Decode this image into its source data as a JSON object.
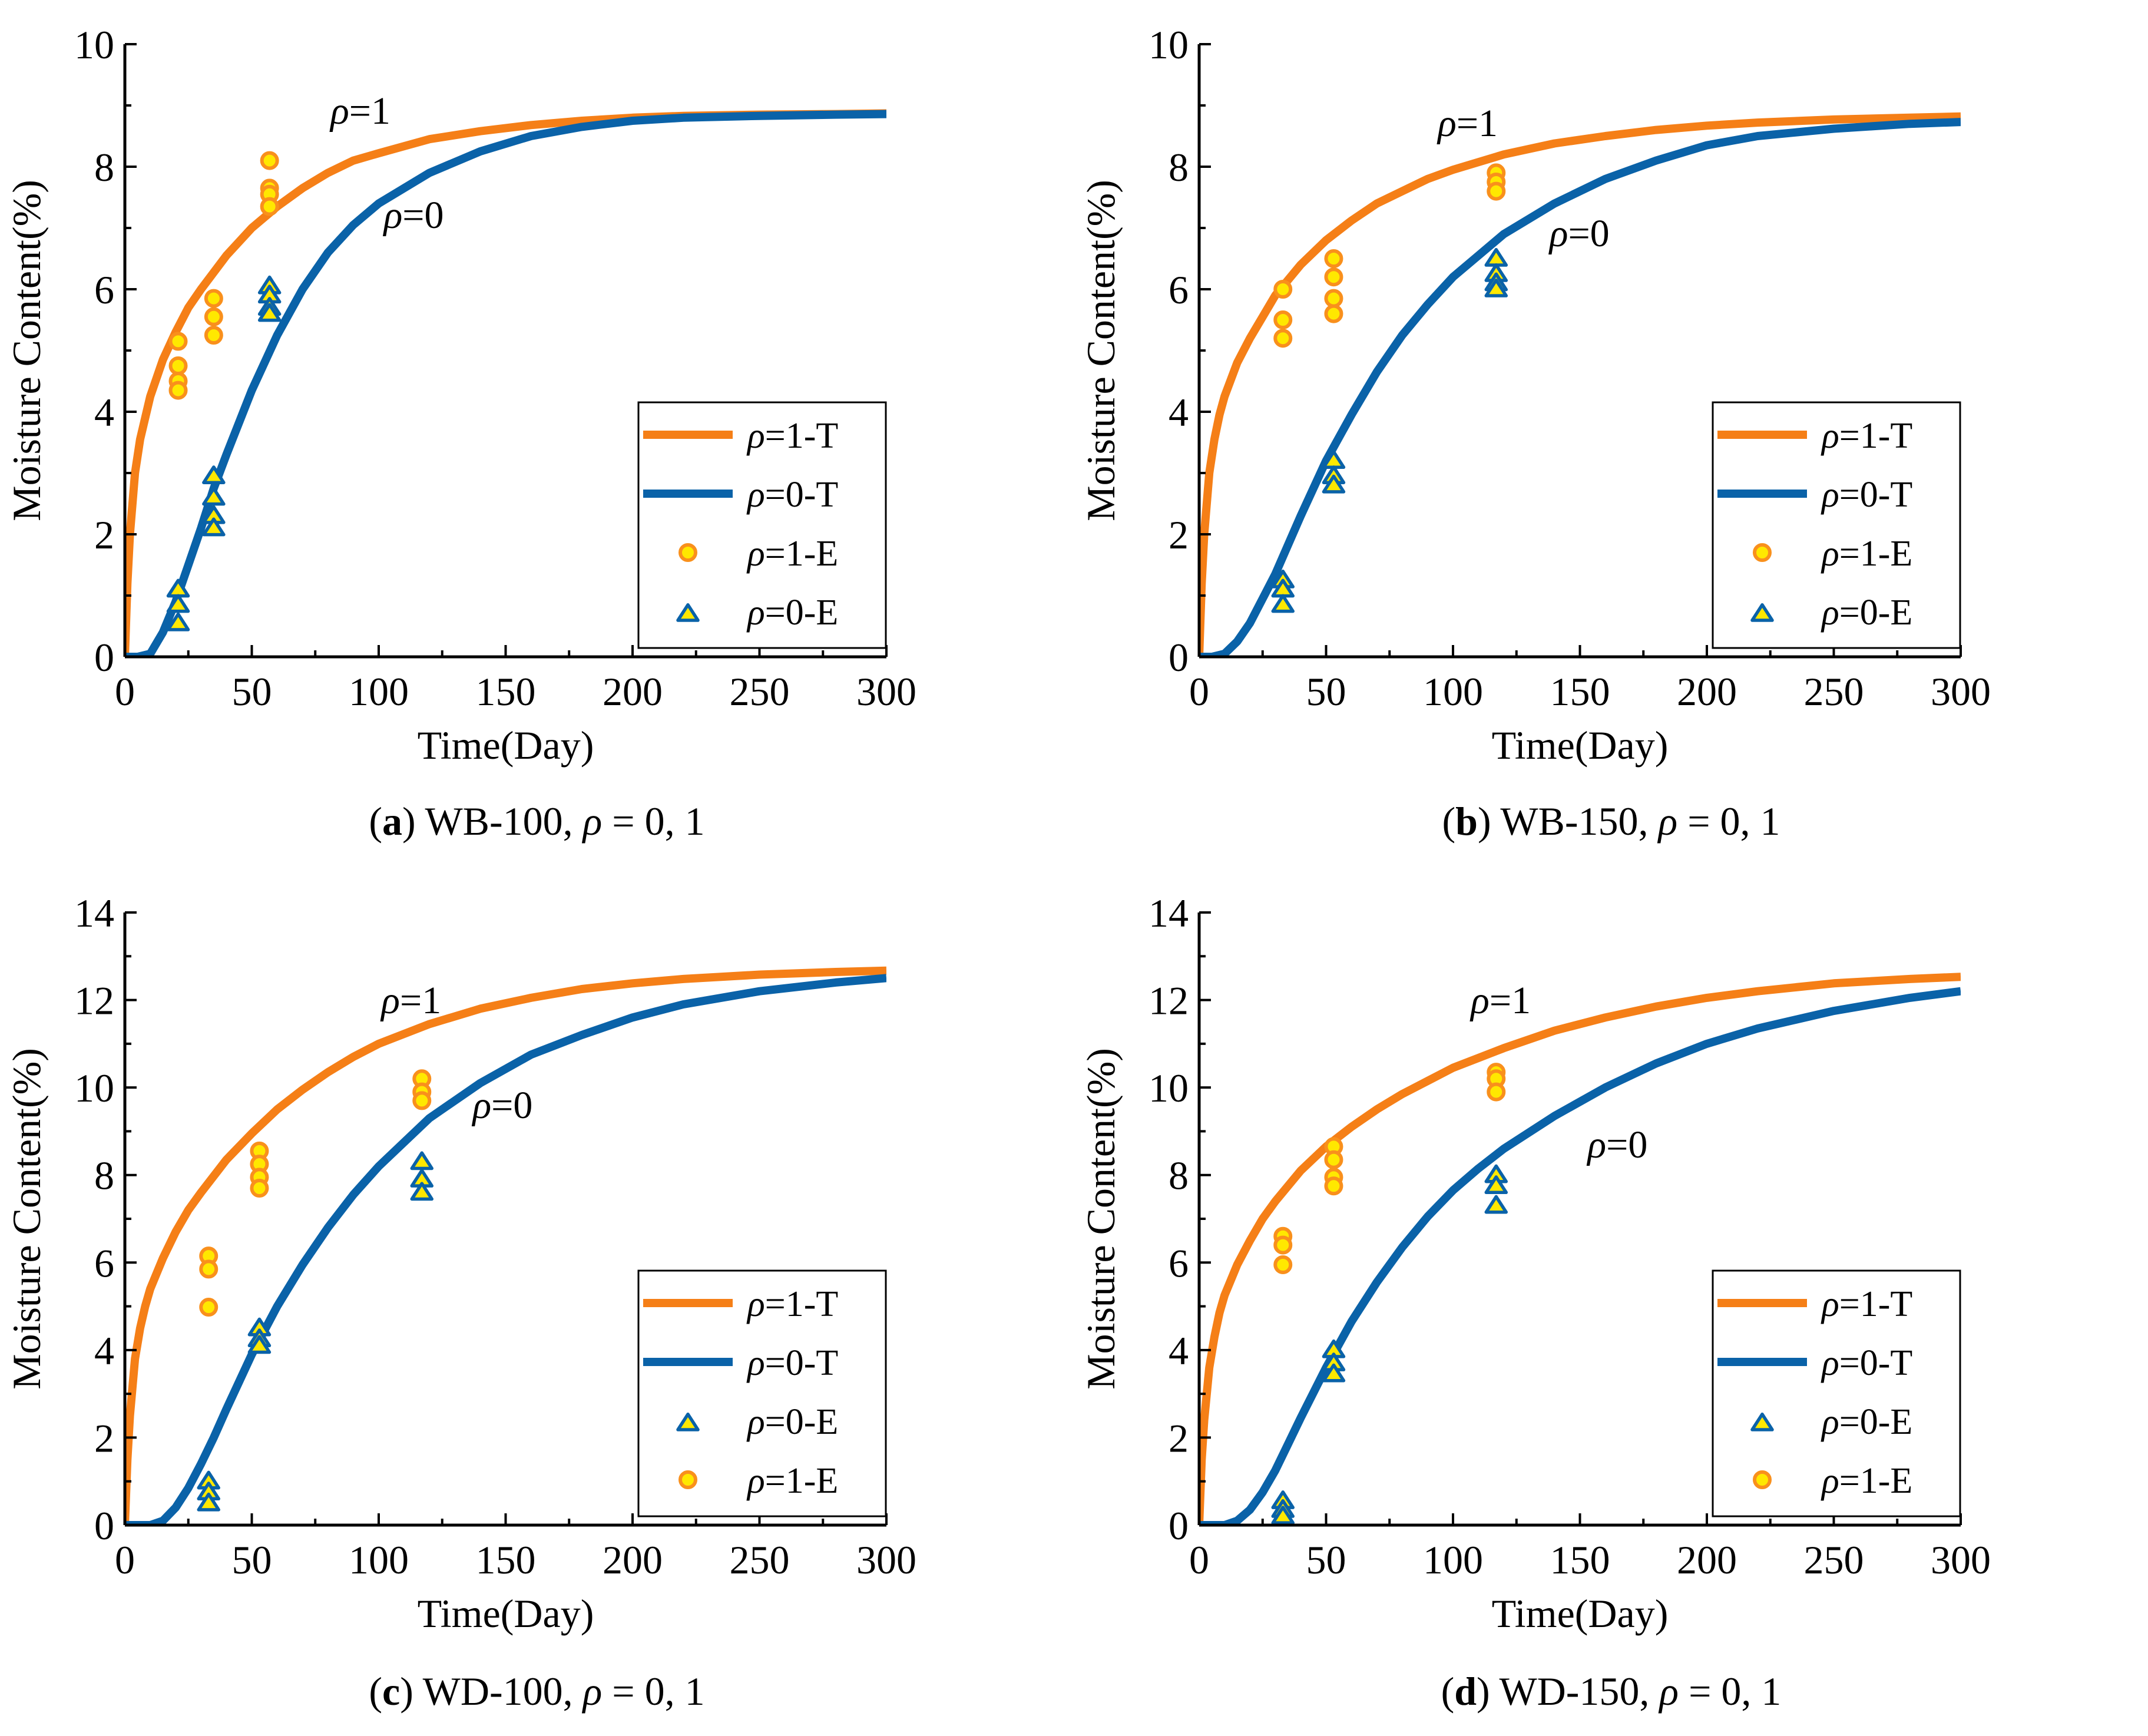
{
  "colors": {
    "rho1": "#F57F17",
    "rho0": "#0A62A8",
    "marker_fill": "#FFE800",
    "circle_edge": "#F9901C",
    "triangle_edge": "#0A62A8"
  },
  "chart_data": [
    {
      "id": "a",
      "type": "line",
      "caption": {
        "letter": "a",
        "open": "(",
        "close": ")",
        "text": " WB-100, ",
        "symbol": "ρ",
        "rest": " = 0, 1"
      },
      "xlabel": "Time(Day)",
      "ylabel": "Moisture Content(%)",
      "xlim": [
        0,
        300
      ],
      "ylim": [
        0,
        10
      ],
      "xticks": [
        "0",
        "50",
        "100",
        "150",
        "200",
        "250",
        "300"
      ],
      "yticks": [
        "0",
        "2",
        "4",
        "6",
        "8",
        "10"
      ],
      "annotations": [
        {
          "symbol": "ρ",
          "text": "=1",
          "x": 81,
          "y": 8.7
        },
        {
          "symbol": "ρ",
          "text": "=0",
          "x": 102,
          "y": 7.0
        }
      ],
      "series": [
        {
          "name": "ρ=1-T",
          "kind": "curve",
          "color": "rho1",
          "x": [
            0,
            1,
            2,
            4,
            6,
            8,
            10,
            15,
            20,
            25,
            30,
            40,
            50,
            60,
            70,
            80,
            90,
            100,
            120,
            140,
            160,
            180,
            200,
            220,
            250,
            280,
            300
          ],
          "y": [
            0,
            1.2,
            2.0,
            3.0,
            3.55,
            3.9,
            4.25,
            4.85,
            5.3,
            5.7,
            6.0,
            6.55,
            7.0,
            7.35,
            7.65,
            7.9,
            8.1,
            8.22,
            8.45,
            8.58,
            8.68,
            8.75,
            8.8,
            8.83,
            8.85,
            8.86,
            8.87
          ]
        },
        {
          "name": "ρ=0-T",
          "kind": "curve",
          "color": "rho0",
          "x": [
            0,
            5,
            10,
            15,
            20,
            25,
            30,
            35,
            40,
            50,
            60,
            70,
            80,
            90,
            100,
            120,
            140,
            160,
            180,
            200,
            220,
            250,
            280,
            300
          ],
          "y": [
            0,
            0,
            0.05,
            0.4,
            0.9,
            1.5,
            2.1,
            2.75,
            3.3,
            4.35,
            5.25,
            6.0,
            6.6,
            7.05,
            7.4,
            7.9,
            8.25,
            8.5,
            8.65,
            8.75,
            8.8,
            8.83,
            8.85,
            8.86
          ]
        },
        {
          "name": "ρ=1-E",
          "kind": "circle",
          "x": [
            21,
            21,
            21,
            21,
            35,
            35,
            35,
            57,
            57,
            57,
            57
          ],
          "y": [
            5.15,
            4.75,
            4.5,
            4.35,
            5.85,
            5.55,
            5.25,
            8.1,
            7.65,
            7.55,
            7.35
          ]
        },
        {
          "name": "ρ=0-E",
          "kind": "triangle",
          "x": [
            21,
            21,
            21,
            35,
            35,
            35,
            35,
            57,
            57,
            57,
            57
          ],
          "y": [
            1.1,
            0.85,
            0.55,
            2.95,
            2.6,
            2.3,
            2.1,
            6.05,
            5.9,
            5.7,
            5.6
          ]
        }
      ],
      "legend": [
        {
          "label_symbol": "ρ",
          "label_text": "=1-T",
          "kind": "line",
          "color": "rho1"
        },
        {
          "label_symbol": "ρ",
          "label_text": "=0-T",
          "kind": "line",
          "color": "rho0"
        },
        {
          "label_symbol": "ρ",
          "label_text": "=1-E",
          "kind": "circle"
        },
        {
          "label_symbol": "ρ",
          "label_text": "=0-E",
          "kind": "triangle"
        }
      ]
    },
    {
      "id": "b",
      "type": "line",
      "caption": {
        "letter": "b",
        "open": "(",
        "close": ")",
        "text": " WB-150, ",
        "symbol": "ρ",
        "rest": " = 0, 1"
      },
      "xlabel": "Time(Day)",
      "ylabel": "Moisture Content(%)",
      "xlim": [
        0,
        300
      ],
      "ylim": [
        0,
        10
      ],
      "xticks": [
        "0",
        "50",
        "100",
        "150",
        "200",
        "250",
        "300"
      ],
      "yticks": [
        "0",
        "2",
        "4",
        "6",
        "8",
        "10"
      ],
      "annotations": [
        {
          "symbol": "ρ",
          "text": "=1",
          "x": 94,
          "y": 8.5
        },
        {
          "symbol": "ρ",
          "text": "=0",
          "x": 138,
          "y": 6.7
        }
      ],
      "series": [
        {
          "name": "ρ=1-T",
          "kind": "curve",
          "color": "rho1",
          "x": [
            0,
            1,
            2,
            4,
            6,
            8,
            10,
            15,
            20,
            25,
            30,
            40,
            50,
            60,
            70,
            80,
            90,
            100,
            120,
            140,
            160,
            180,
            200,
            220,
            250,
            280,
            300
          ],
          "y": [
            0,
            1.2,
            2.0,
            3.0,
            3.55,
            3.95,
            4.25,
            4.8,
            5.2,
            5.55,
            5.9,
            6.4,
            6.8,
            7.12,
            7.4,
            7.6,
            7.8,
            7.95,
            8.2,
            8.38,
            8.5,
            8.6,
            8.67,
            8.72,
            8.77,
            8.8,
            8.82
          ]
        },
        {
          "name": "ρ=0-T",
          "kind": "curve",
          "color": "rho0",
          "x": [
            0,
            5,
            10,
            15,
            20,
            25,
            30,
            40,
            50,
            60,
            70,
            80,
            90,
            100,
            110,
            120,
            140,
            160,
            180,
            200,
            220,
            250,
            280,
            300
          ],
          "y": [
            0,
            0,
            0.05,
            0.25,
            0.55,
            0.95,
            1.35,
            2.3,
            3.2,
            3.95,
            4.65,
            5.25,
            5.75,
            6.2,
            6.55,
            6.9,
            7.4,
            7.8,
            8.1,
            8.35,
            8.5,
            8.62,
            8.7,
            8.73
          ]
        },
        {
          "name": "ρ=1-E",
          "kind": "circle",
          "x": [
            33,
            33,
            33,
            53,
            53,
            53,
            53,
            117,
            117,
            117
          ],
          "y": [
            6.0,
            5.5,
            5.2,
            6.5,
            6.2,
            5.85,
            5.6,
            7.9,
            7.75,
            7.6
          ]
        },
        {
          "name": "ρ=0-E",
          "kind": "triangle",
          "x": [
            33,
            33,
            33,
            53,
            53,
            53,
            117,
            117,
            117,
            117
          ],
          "y": [
            1.25,
            1.1,
            0.85,
            3.2,
            2.95,
            2.8,
            6.5,
            6.25,
            6.1,
            6.0
          ]
        }
      ],
      "legend": [
        {
          "label_symbol": "ρ",
          "label_text": "=1-T",
          "kind": "line",
          "color": "rho1"
        },
        {
          "label_symbol": "ρ",
          "label_text": "=0-T",
          "kind": "line",
          "color": "rho0"
        },
        {
          "label_symbol": "ρ",
          "label_text": "=1-E",
          "kind": "circle"
        },
        {
          "label_symbol": "ρ",
          "label_text": "=0-E",
          "kind": "triangle"
        }
      ]
    },
    {
      "id": "c",
      "type": "line",
      "caption": {
        "letter": "c",
        "open": "(",
        "close": ")",
        "text": " WD-100, ",
        "symbol": "ρ",
        "rest": " = 0, 1"
      },
      "xlabel": "Time(Day)",
      "ylabel": "Moisture Content(%)",
      "xlim": [
        0,
        300
      ],
      "ylim": [
        0,
        14
      ],
      "xticks": [
        "0",
        "50",
        "100",
        "150",
        "200",
        "250",
        "300"
      ],
      "yticks": [
        "0",
        "2",
        "4",
        "6",
        "8",
        "10",
        "12",
        "14"
      ],
      "annotations": [
        {
          "symbol": "ρ",
          "text": "=1",
          "x": 101,
          "y": 11.7
        },
        {
          "symbol": "ρ",
          "text": "=0",
          "x": 137,
          "y": 9.3
        }
      ],
      "series": [
        {
          "name": "ρ=1-T",
          "kind": "curve",
          "color": "rho1",
          "x": [
            0,
            1,
            2,
            4,
            6,
            8,
            10,
            15,
            20,
            25,
            30,
            40,
            50,
            60,
            70,
            80,
            90,
            100,
            120,
            140,
            160,
            180,
            200,
            220,
            250,
            280,
            300
          ],
          "y": [
            0,
            1.5,
            2.5,
            3.8,
            4.5,
            5.0,
            5.4,
            6.1,
            6.7,
            7.2,
            7.6,
            8.35,
            8.95,
            9.5,
            9.95,
            10.35,
            10.7,
            11.0,
            11.45,
            11.8,
            12.05,
            12.25,
            12.38,
            12.48,
            12.58,
            12.64,
            12.67
          ]
        },
        {
          "name": "ρ=0-T",
          "kind": "curve",
          "color": "rho0",
          "x": [
            0,
            10,
            15,
            20,
            25,
            30,
            35,
            40,
            50,
            60,
            70,
            80,
            90,
            100,
            120,
            140,
            160,
            180,
            200,
            220,
            250,
            280,
            300
          ],
          "y": [
            0,
            0,
            0.1,
            0.4,
            0.85,
            1.4,
            2.0,
            2.65,
            3.9,
            5.0,
            5.95,
            6.8,
            7.55,
            8.2,
            9.3,
            10.1,
            10.75,
            11.2,
            11.6,
            11.9,
            12.2,
            12.4,
            12.5
          ]
        },
        {
          "name": "ρ=1-E",
          "kind": "circle",
          "x": [
            33,
            33,
            33,
            53,
            53,
            53,
            53,
            117,
            117,
            117
          ],
          "y": [
            6.15,
            5.85,
            4.98,
            8.55,
            8.25,
            7.95,
            7.7,
            10.2,
            9.9,
            9.7
          ]
        },
        {
          "name": "ρ=0-E",
          "kind": "triangle",
          "x": [
            33,
            33,
            33,
            53,
            53,
            53,
            117,
            117,
            117
          ],
          "y": [
            1.0,
            0.75,
            0.5,
            4.5,
            4.25,
            4.1,
            8.3,
            7.9,
            7.6
          ]
        }
      ],
      "legend": [
        {
          "label_symbol": "ρ",
          "label_text": "=1-T",
          "kind": "line",
          "color": "rho1"
        },
        {
          "label_symbol": "ρ",
          "label_text": "=0-T",
          "kind": "line",
          "color": "rho0"
        },
        {
          "label_symbol": "ρ",
          "label_text": "=0-E",
          "kind": "triangle"
        },
        {
          "label_symbol": "ρ",
          "label_text": "=1-E",
          "kind": "circle"
        }
      ]
    },
    {
      "id": "d",
      "type": "line",
      "caption": {
        "letter": "d",
        "open": "(",
        "close": ")",
        "text": " WD-150, ",
        "symbol": "ρ",
        "rest": " = 0, 1"
      },
      "xlabel": "Time(Day)",
      "ylabel": "Moisture Content(%)",
      "xlim": [
        0,
        300
      ],
      "ylim": [
        0,
        14
      ],
      "xticks": [
        "0",
        "50",
        "100",
        "150",
        "200",
        "250",
        "300"
      ],
      "yticks": [
        "0",
        "2",
        "4",
        "6",
        "8",
        "10",
        "12",
        "14"
      ],
      "annotations": [
        {
          "symbol": "ρ",
          "text": "=1",
          "x": 107,
          "y": 11.7
        },
        {
          "symbol": "ρ",
          "text": "=0",
          "x": 153,
          "y": 8.4
        }
      ],
      "series": [
        {
          "name": "ρ=1-T",
          "kind": "curve",
          "color": "rho1",
          "x": [
            0,
            1,
            2,
            4,
            6,
            8,
            10,
            15,
            20,
            25,
            30,
            40,
            50,
            60,
            70,
            80,
            90,
            100,
            120,
            140,
            160,
            180,
            200,
            220,
            250,
            280,
            300
          ],
          "y": [
            0,
            1.5,
            2.4,
            3.6,
            4.3,
            4.85,
            5.25,
            5.95,
            6.5,
            7.0,
            7.4,
            8.1,
            8.65,
            9.1,
            9.5,
            9.85,
            10.15,
            10.45,
            10.9,
            11.3,
            11.6,
            11.85,
            12.05,
            12.2,
            12.38,
            12.48,
            12.53
          ]
        },
        {
          "name": "ρ=0-T",
          "kind": "curve",
          "color": "rho0",
          "x": [
            0,
            10,
            15,
            20,
            25,
            30,
            35,
            40,
            50,
            60,
            70,
            80,
            90,
            100,
            110,
            120,
            140,
            160,
            180,
            200,
            220,
            250,
            280,
            300
          ],
          "y": [
            0,
            0,
            0.1,
            0.35,
            0.75,
            1.25,
            1.85,
            2.45,
            3.6,
            4.65,
            5.55,
            6.35,
            7.05,
            7.65,
            8.15,
            8.6,
            9.35,
            10.0,
            10.55,
            11.0,
            11.35,
            11.75,
            12.05,
            12.2
          ]
        },
        {
          "name": "ρ=1-E",
          "kind": "circle",
          "x": [
            33,
            33,
            33,
            53,
            53,
            53,
            53,
            117,
            117,
            117
          ],
          "y": [
            6.6,
            6.4,
            5.95,
            8.65,
            8.35,
            7.95,
            7.75,
            10.35,
            10.2,
            9.9
          ]
        },
        {
          "name": "ρ=0-E",
          "kind": "triangle",
          "x": [
            33,
            33,
            33,
            53,
            53,
            53,
            117,
            117,
            117
          ],
          "y": [
            0.55,
            0.35,
            0.2,
            4.0,
            3.7,
            3.45,
            8.0,
            7.75,
            7.3
          ]
        }
      ],
      "legend": [
        {
          "label_symbol": "ρ",
          "label_text": "=1-T",
          "kind": "line",
          "color": "rho1"
        },
        {
          "label_symbol": "ρ",
          "label_text": "=0-T",
          "kind": "line",
          "color": "rho0"
        },
        {
          "label_symbol": "ρ",
          "label_text": "=0-E",
          "kind": "triangle"
        },
        {
          "label_symbol": "ρ",
          "label_text": "=1-E",
          "kind": "circle"
        }
      ]
    }
  ]
}
